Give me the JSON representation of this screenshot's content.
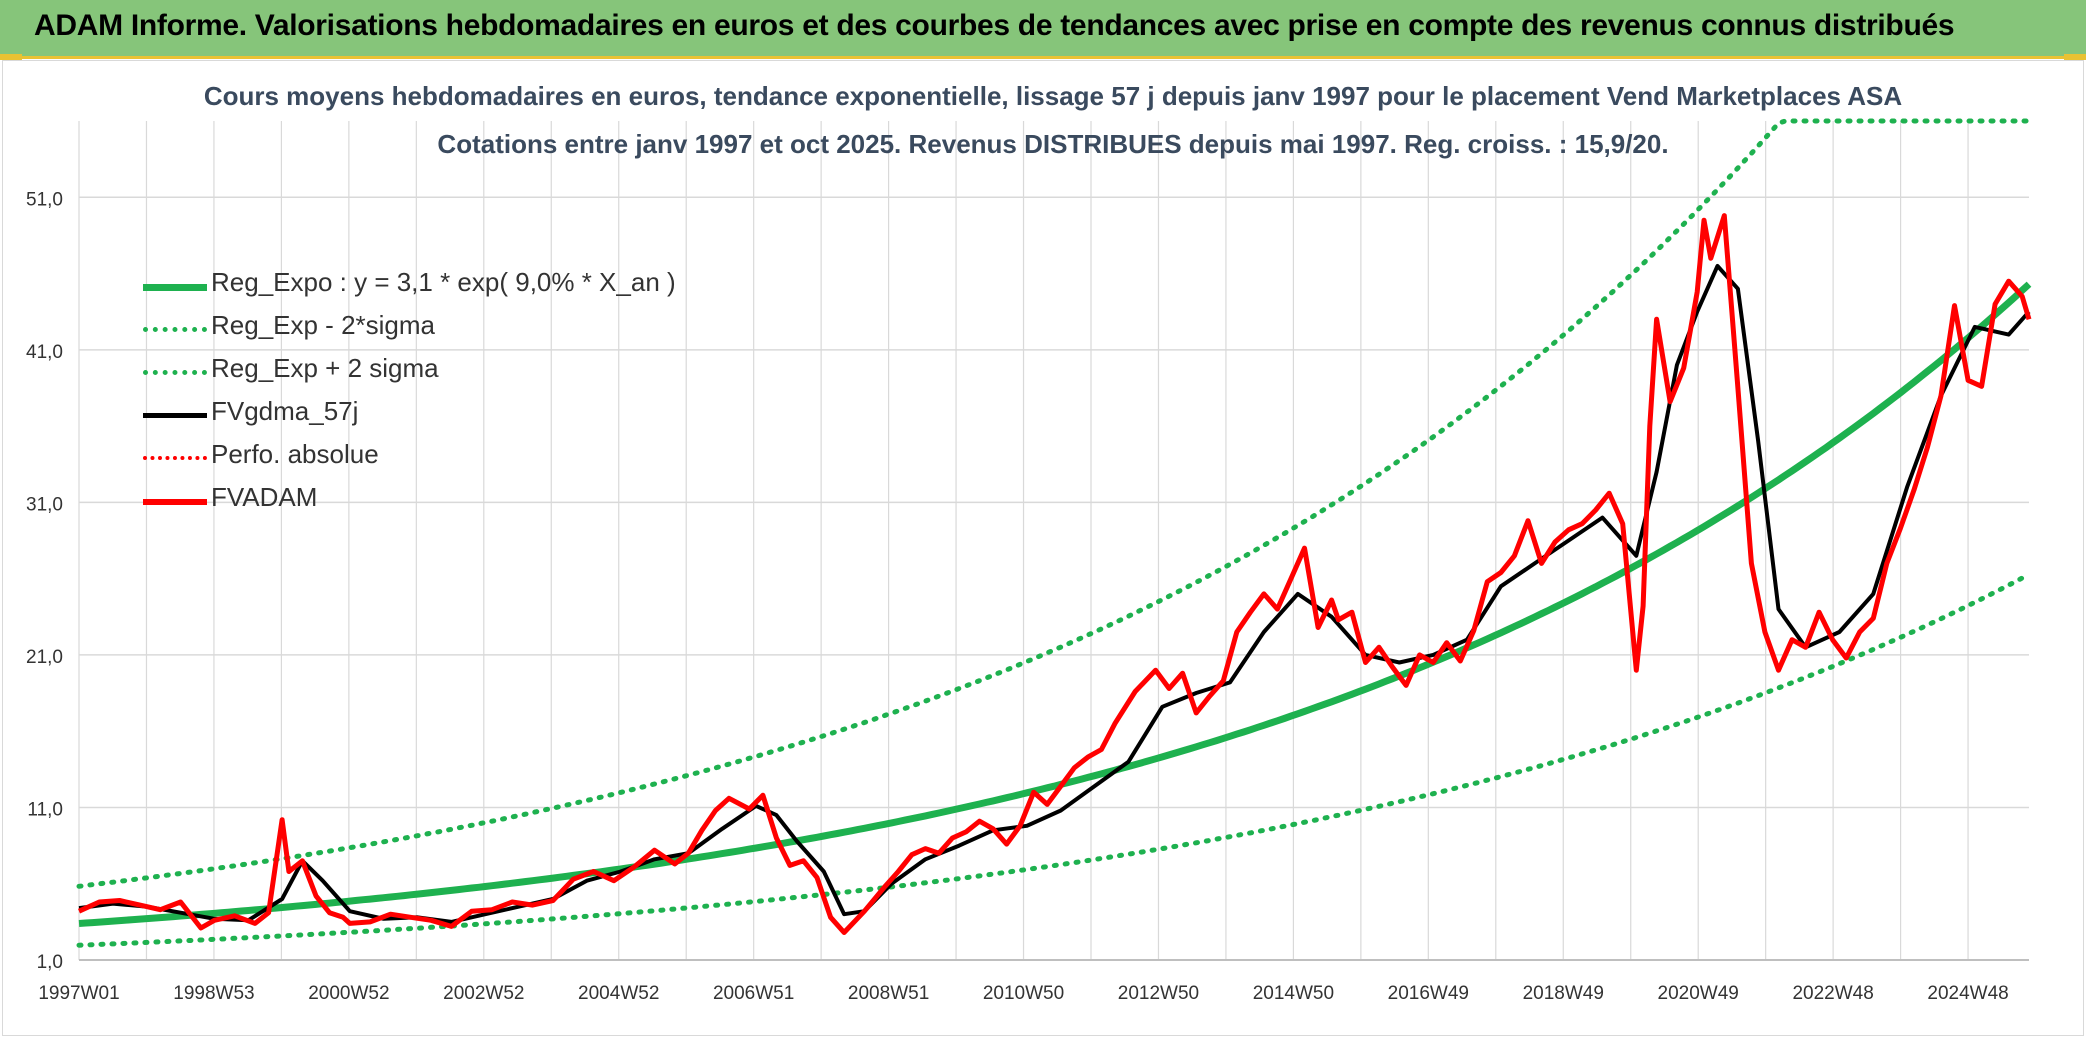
{
  "banner": {
    "title": "ADAM Informe. Valorisations hebdomadaires en euros et des courbes de tendances avec prise en compte des revenus connus distribués"
  },
  "colors": {
    "banner_bg": "#86c57a",
    "accent_gold": "#e9c233",
    "trend_green": "#1eb14f",
    "price_red": "#ff0000",
    "smooth_black": "#000000",
    "grid": "#d9d9d9"
  },
  "chart_data": {
    "type": "line",
    "title": "Cours moyens hebdomadaires en euros, tendance exponentielle, lissage 57 j depuis janv 1997 pour le placement Vend Marketplaces ASA",
    "subtitle": "Cotations entre janv 1997 et oct 2025. Revenus DISTRIBUES depuis mai 1997. Reg. croiss. : 15,9/20.",
    "x_ticks": [
      "1997W01",
      "1998W53",
      "2000W52",
      "2002W52",
      "2004W52",
      "2006W51",
      "2008W51",
      "2010W50",
      "2012W50",
      "2014W50",
      "2016W49",
      "2018W49",
      "2020W49",
      "2022W48",
      "2024W48"
    ],
    "x_range": [
      "1997W01",
      "2025W43"
    ],
    "y_ticks": [
      "1,0",
      "11,0",
      "21,0",
      "31,0",
      "41,0",
      "51,0"
    ],
    "ylim": [
      1,
      56
    ],
    "grid": true,
    "legend_position": "top-left",
    "legend": [
      {
        "name": "Reg_Expo : y = 3,1 * exp( 9,0% *  X_an )",
        "style": "solid-green"
      },
      {
        "name": "Reg_Exp - 2*sigma",
        "style": "dotted-green"
      },
      {
        "name": "Reg_Exp + 2 sigma",
        "style": "dotted-green"
      },
      {
        "name": "FVgdma_57j",
        "style": "solid-black"
      },
      {
        "name": "Perfo. absolue",
        "style": "dotted-red"
      },
      {
        "name": "FVADAM",
        "style": "solid-red"
      }
    ],
    "regression": {
      "a": 3.1,
      "rate": 0.09,
      "lower_factor": 0.58,
      "upper_factor": 1.72
    },
    "price_series": {
      "name": "FVADAM",
      "x": [
        1997.0,
        1997.3,
        1997.6,
        1997.9,
        1998.2,
        1998.5,
        1998.8,
        1999.0,
        1999.3,
        1999.6,
        1999.8,
        2000.0,
        2000.1,
        2000.3,
        2000.5,
        2000.7,
        2000.9,
        2001.0,
        2001.3,
        2001.6,
        2001.9,
        2002.2,
        2002.5,
        2002.8,
        2003.1,
        2003.4,
        2003.7,
        2004.0,
        2004.3,
        2004.6,
        2004.9,
        2005.2,
        2005.5,
        2005.8,
        2006.0,
        2006.2,
        2006.4,
        2006.6,
        2006.9,
        2007.1,
        2007.3,
        2007.5,
        2007.7,
        2007.9,
        2008.1,
        2008.3,
        2008.6,
        2008.9,
        2009.1,
        2009.3,
        2009.5,
        2009.7,
        2009.9,
        2010.1,
        2010.3,
        2010.5,
        2010.7,
        2010.9,
        2011.1,
        2011.3,
        2011.5,
        2011.7,
        2011.9,
        2012.1,
        2012.3,
        2012.6,
        2012.9,
        2013.1,
        2013.3,
        2013.5,
        2013.7,
        2013.9,
        2014.1,
        2014.3,
        2014.5,
        2014.7,
        2014.9,
        2015.1,
        2015.3,
        2015.5,
        2015.6,
        2015.8,
        2016.0,
        2016.2,
        2016.4,
        2016.6,
        2016.8,
        2017.0,
        2017.2,
        2017.4,
        2017.6,
        2017.8,
        2018.0,
        2018.2,
        2018.4,
        2018.6,
        2018.8,
        2019.0,
        2019.2,
        2019.4,
        2019.6,
        2019.8,
        2020.0,
        2020.1,
        2020.2,
        2020.3,
        2020.5,
        2020.7,
        2020.9,
        2021.0,
        2021.1,
        2021.3,
        2021.5,
        2021.7,
        2021.9,
        2022.1,
        2022.3,
        2022.5,
        2022.7,
        2022.9,
        2023.1,
        2023.3,
        2023.5,
        2023.7,
        2023.9,
        2024.1,
        2024.3,
        2024.5,
        2024.7,
        2024.9,
        2025.1,
        2025.3,
        2025.5,
        2025.7,
        2025.8
      ],
      "y": [
        4.2,
        4.8,
        4.9,
        4.6,
        4.3,
        4.8,
        3.1,
        3.6,
        3.9,
        3.4,
        4.1,
        10.2,
        6.8,
        7.5,
        5.2,
        4.1,
        3.8,
        3.4,
        3.5,
        4.0,
        3.8,
        3.6,
        3.2,
        4.2,
        4.3,
        4.8,
        4.6,
        4.9,
        6.3,
        6.8,
        6.2,
        7.1,
        8.2,
        7.3,
        8.0,
        9.5,
        10.8,
        11.6,
        10.9,
        11.8,
        9.0,
        7.2,
        7.5,
        6.4,
        3.8,
        2.8,
        4.2,
        5.8,
        6.8,
        7.9,
        8.3,
        8.0,
        9.0,
        9.4,
        10.1,
        9.6,
        8.6,
        9.8,
        12.0,
        11.2,
        12.4,
        13.6,
        14.3,
        14.8,
        16.5,
        18.6,
        20.0,
        18.8,
        19.8,
        17.2,
        18.3,
        19.3,
        22.5,
        23.8,
        25.0,
        24.0,
        26.0,
        28.0,
        22.8,
        24.6,
        23.3,
        23.8,
        20.5,
        21.5,
        20.2,
        19.0,
        21.0,
        20.5,
        21.8,
        20.6,
        22.6,
        25.8,
        26.4,
        27.5,
        29.8,
        27.0,
        28.4,
        29.2,
        29.6,
        30.5,
        31.6,
        29.6,
        20.0,
        24.2,
        36.0,
        43.0,
        37.6,
        39.8,
        44.8,
        49.5,
        47.0,
        49.8,
        38.5,
        27.0,
        22.5,
        20.0,
        22.0,
        21.5,
        23.8,
        22.0,
        20.8,
        22.5,
        23.4,
        27.0,
        29.3,
        31.8,
        34.6,
        38.0,
        43.9,
        39.0,
        38.6,
        44.0,
        45.5,
        44.5,
        43.0
      ]
    },
    "smooth_series": {
      "name": "FVgdma_57j",
      "x": [
        1997.0,
        1997.5,
        1998.0,
        1998.5,
        1999.0,
        1999.5,
        2000.0,
        2000.3,
        2000.6,
        2001.0,
        2001.5,
        2002.0,
        2002.5,
        2003.0,
        2003.5,
        2004.0,
        2004.5,
        2005.0,
        2005.5,
        2006.0,
        2006.5,
        2007.0,
        2007.3,
        2007.6,
        2008.0,
        2008.3,
        2008.6,
        2009.0,
        2009.5,
        2010.0,
        2010.5,
        2011.0,
        2011.5,
        2012.0,
        2012.5,
        2013.0,
        2013.5,
        2014.0,
        2014.5,
        2015.0,
        2015.5,
        2016.0,
        2016.5,
        2017.0,
        2017.5,
        2018.0,
        2018.5,
        2019.0,
        2019.5,
        2020.0,
        2020.3,
        2020.6,
        2020.9,
        2021.2,
        2021.5,
        2021.8,
        2022.1,
        2022.5,
        2023.0,
        2023.5,
        2024.0,
        2024.5,
        2025.0,
        2025.5,
        2025.8
      ],
      "y": [
        4.4,
        4.7,
        4.5,
        4.1,
        3.7,
        3.6,
        5.0,
        7.5,
        6.2,
        4.2,
        3.7,
        3.8,
        3.5,
        4.0,
        4.5,
        5.0,
        6.2,
        6.8,
        7.6,
        8.0,
        9.6,
        11.1,
        10.5,
        8.8,
        6.8,
        4.0,
        4.2,
        6.0,
        7.6,
        8.5,
        9.5,
        9.8,
        10.8,
        12.4,
        14.0,
        17.6,
        18.5,
        19.2,
        22.5,
        25.0,
        23.5,
        21.0,
        20.5,
        21.0,
        22.0,
        25.5,
        27.0,
        28.5,
        30.0,
        27.5,
        33.0,
        40.0,
        43.5,
        46.5,
        45.0,
        35.0,
        24.0,
        21.5,
        22.5,
        25.0,
        32.0,
        38.0,
        42.5,
        42.0,
        43.5
      ]
    }
  }
}
